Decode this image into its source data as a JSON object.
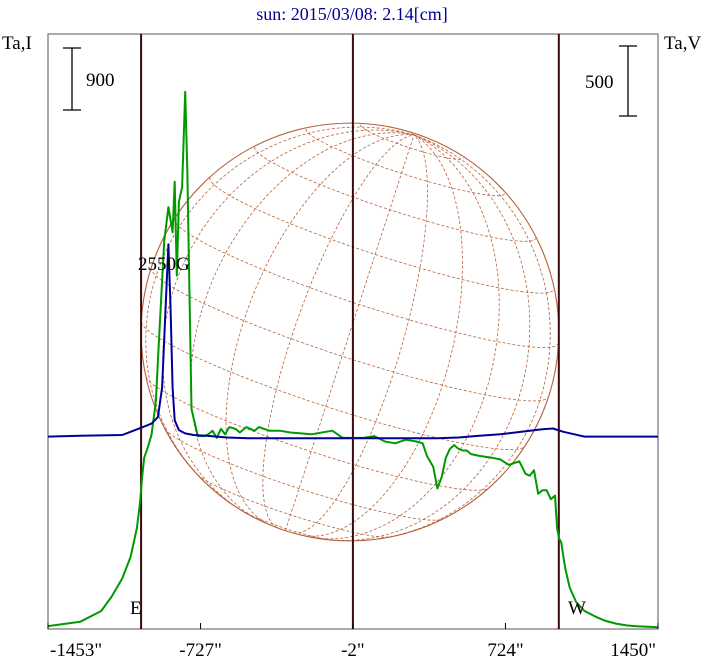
{
  "chart_data": {
    "type": "line",
    "title": "sun: 2015/03/08: 2.14[cm]",
    "xlim": [
      -1453,
      1450
    ],
    "x_ticks": [
      -1453,
      -727,
      -2,
      724,
      1450
    ],
    "x_tick_labels": [
      "-1453\"",
      "-727\"",
      "-2\"",
      "724\"",
      "1450\""
    ],
    "limb_markers": [
      -1010,
      -2,
      978
    ],
    "limb_labels": {
      "east": "E",
      "west": "W"
    },
    "annotation": "2550G",
    "left_axis": {
      "label": "Ta,I",
      "scale_bar_label": "900"
    },
    "right_axis": {
      "label": "Ta,V",
      "scale_bar_label": "500"
    },
    "colors": {
      "intensity": "#009900",
      "polarization": "#000099",
      "grid": "#b5623a",
      "markers": "#3a0a0a",
      "frame": "#555555"
    },
    "series": [
      {
        "id": "I",
        "x": [
          -1453,
          -1300,
          -1200,
          -1150,
          -1100,
          -1060,
          -1030,
          -1015,
          -1005,
          -995,
          -980,
          -960,
          -940,
          -920,
          -900,
          -880,
          -860,
          -850,
          -840,
          -830,
          -815,
          -800,
          -790,
          -770,
          -740,
          -710,
          -690,
          -670,
          -650,
          -630,
          -610,
          -590,
          -560,
          -540,
          -510,
          -470,
          -450,
          -400,
          -350,
          -300,
          -200,
          -100,
          -50,
          0,
          50,
          100,
          150,
          200,
          250,
          300,
          330,
          350,
          380,
          400,
          420,
          440,
          460,
          480,
          500,
          520,
          540,
          560,
          600,
          660,
          700,
          740,
          790,
          820,
          840,
          860,
          880,
          900,
          920,
          940,
          960,
          970,
          980,
          990,
          1000,
          1010,
          1030,
          1060,
          1100,
          1150,
          1200,
          1250,
          1300,
          1350,
          1400,
          1450
        ],
        "values": [
          16,
          40,
          100,
          180,
          280,
          400,
          560,
          700,
          840,
          950,
          1000,
          1080,
          1260,
          1710,
          2150,
          2340,
          2200,
          2480,
          1960,
          2370,
          2450,
          2980,
          2550,
          1220,
          1070,
          1070,
          1080,
          1100,
          1060,
          1110,
          1080,
          1120,
          1110,
          1090,
          1120,
          1100,
          1120,
          1100,
          1100,
          1090,
          1080,
          1100,
          1060,
          1060,
          1060,
          1070,
          1040,
          1030,
          1050,
          1040,
          1030,
          960,
          900,
          780,
          840,
          950,
          1000,
          1020,
          1000,
          990,
          990,
          970,
          960,
          950,
          940,
          910,
          930,
          860,
          850,
          880,
          750,
          770,
          770,
          720,
          740,
          560,
          500,
          480,
          400,
          330,
          230,
          150,
          100,
          70,
          45,
          30,
          20,
          15,
          12,
          10
        ],
        "ylim": [
          0,
          3300
        ]
      },
      {
        "id": "V",
        "x": [
          -1453,
          -1300,
          -1100,
          -1000,
          -960,
          -930,
          -910,
          -895,
          -880,
          -870,
          -860,
          -850,
          -830,
          -800,
          -760,
          -700,
          -600,
          -500,
          -400,
          -200,
          0,
          200,
          400,
          500,
          600,
          700,
          800,
          900,
          950,
          1000,
          1050,
          1100,
          1200,
          1300,
          1450
        ],
        "values": [
          0,
          5,
          10,
          60,
          80,
          120,
          300,
          750,
          1180,
          800,
          300,
          100,
          40,
          20,
          10,
          5,
          -5,
          -10,
          -10,
          -10,
          -10,
          -10,
          -10,
          -5,
          5,
          15,
          30,
          45,
          50,
          30,
          15,
          0,
          0,
          0,
          0
        ],
        "ylim": [
          -1180,
          2470
        ]
      }
    ]
  }
}
